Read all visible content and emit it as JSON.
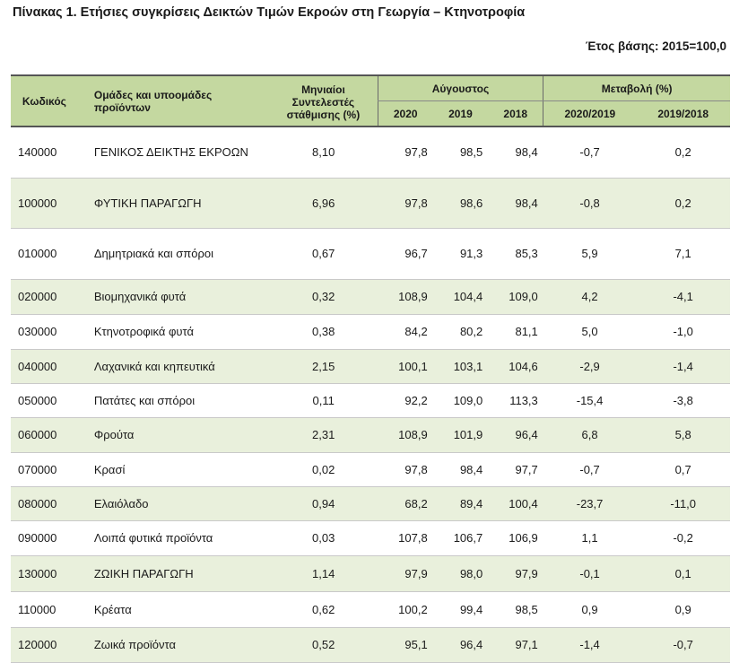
{
  "title": "Πίνακας 1. Ετήσιες συγκρίσεις Δεικτών Τιμών Εκροών στη Γεωργία – Κτηνοτροφία",
  "base_year": "Έτος βάσης: 2015=100,0",
  "header": {
    "code": "Κωδικός",
    "groups": "Ομάδες και υποομάδες προϊόντων",
    "weights": "Μηνιαίοι Συντελεστές στάθμισης (%)",
    "august": "Αύγουστος",
    "change": "Μεταβολή (%)",
    "y2020": "2020",
    "y2019": "2019",
    "y2018": "2018",
    "c1": "2020/2019",
    "c2": "2019/2018"
  },
  "rows": [
    {
      "code": "140000",
      "name": "ΓΕΝΙΚΟΣ ΔΕΙΚΤΗΣ ΕΚΡΟΩΝ",
      "w": "8,10",
      "y2020": "97,8",
      "y2019": "98,5",
      "y2018": "98,4",
      "c1": "-0,7",
      "c2": "0,2"
    },
    {
      "code": "100000",
      "name": "ΦΥΤΙΚΗ ΠΑΡΑΓΩΓΗ",
      "w": "6,96",
      "y2020": "97,8",
      "y2019": "98,6",
      "y2018": "98,4",
      "c1": "-0,8",
      "c2": "0,2"
    },
    {
      "code": "010000",
      "name": "Δημητριακά και σπόροι",
      "w": "0,67",
      "y2020": "96,7",
      "y2019": "91,3",
      "y2018": "85,3",
      "c1": "5,9",
      "c2": "7,1"
    },
    {
      "code": "020000",
      "name": "Βιομηχανικά φυτά",
      "w": "0,32",
      "y2020": "108,9",
      "y2019": "104,4",
      "y2018": "109,0",
      "c1": "4,2",
      "c2": "-4,1"
    },
    {
      "code": "030000",
      "name": "Κτηνοτροφικά φυτά",
      "w": "0,38",
      "y2020": "84,2",
      "y2019": "80,2",
      "y2018": "81,1",
      "c1": "5,0",
      "c2": "-1,0"
    },
    {
      "code": "040000",
      "name": "Λαχανικά και κηπευτικά",
      "w": "2,15",
      "y2020": "100,1",
      "y2019": "103,1",
      "y2018": "104,6",
      "c1": "-2,9",
      "c2": "-1,4"
    },
    {
      "code": "050000",
      "name": "Πατάτες και σπόροι",
      "w": "0,11",
      "y2020": "92,2",
      "y2019": "109,0",
      "y2018": "113,3",
      "c1": "-15,4",
      "c2": "-3,8"
    },
    {
      "code": "060000",
      "name": "Φρούτα",
      "w": "2,31",
      "y2020": "108,9",
      "y2019": "101,9",
      "y2018": "96,4",
      "c1": "6,8",
      "c2": "5,8"
    },
    {
      "code": "070000",
      "name": "Κρασί",
      "w": "0,02",
      "y2020": "97,8",
      "y2019": "98,4",
      "y2018": "97,7",
      "c1": "-0,7",
      "c2": "0,7"
    },
    {
      "code": "080000",
      "name": "Ελαιόλαδο",
      "w": "0,94",
      "y2020": "68,2",
      "y2019": "89,4",
      "y2018": "100,4",
      "c1": "-23,7",
      "c2": "-11,0"
    },
    {
      "code": "090000",
      "name": "Λοιπά φυτικά προϊόντα",
      "w": "0,03",
      "y2020": "107,8",
      "y2019": "106,7",
      "y2018": "106,9",
      "c1": "1,1",
      "c2": "-0,2"
    },
    {
      "code": "130000",
      "name": "ΖΩΙΚΗ ΠΑΡΑΓΩΓΗ",
      "w": "1,14",
      "y2020": "97,9",
      "y2019": "98,0",
      "y2018": "97,9",
      "c1": "-0,1",
      "c2": "0,1"
    },
    {
      "code": "110000",
      "name": "Κρέατα",
      "w": "0,62",
      "y2020": "100,2",
      "y2019": "99,4",
      "y2018": "98,5",
      "c1": "0,9",
      "c2": "0,9"
    },
    {
      "code": "120000",
      "name": "Ζωικά προϊόντα",
      "w": "0,52",
      "y2020": "95,1",
      "y2019": "96,4",
      "y2018": "97,1",
      "c1": "-1,4",
      "c2": "-0,7"
    }
  ]
}
